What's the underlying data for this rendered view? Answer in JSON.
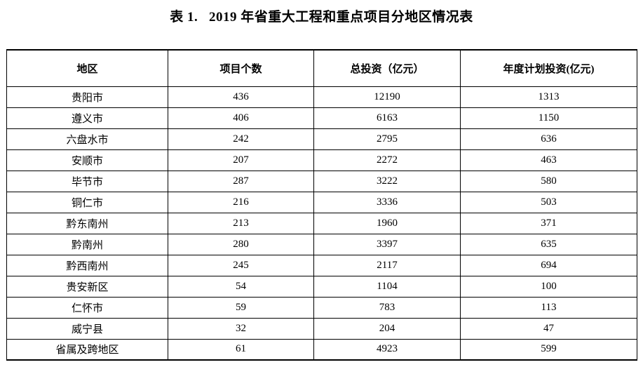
{
  "page": {
    "title": "表 1.   2019 年省重大工程和重点项目分地区情况表"
  },
  "table": {
    "headers": [
      "地区",
      "项目个数",
      "总投资（亿元）",
      "年度计划投资(亿元)"
    ],
    "rows": [
      {
        "region": "贵阳市",
        "projects": "436",
        "total": "12190",
        "annual": "1313"
      },
      {
        "region": "遵义市",
        "projects": "406",
        "total": "6163",
        "annual": "1150"
      },
      {
        "region": "六盘水市",
        "projects": "242",
        "total": "2795",
        "annual": "636"
      },
      {
        "region": "安顺市",
        "projects": "207",
        "total": "2272",
        "annual": "463"
      },
      {
        "region": "毕节市",
        "projects": "287",
        "total": "3222",
        "annual": "580"
      },
      {
        "region": "铜仁市",
        "projects": "216",
        "total": "3336",
        "annual": "503"
      },
      {
        "region": "黔东南州",
        "projects": "213",
        "total": "1960",
        "annual": "371"
      },
      {
        "region": "黔南州",
        "projects": "280",
        "total": "3397",
        "annual": "635"
      },
      {
        "region": "黔西南州",
        "projects": "245",
        "total": "2117",
        "annual": "694"
      },
      {
        "region": "贵安新区",
        "projects": "54",
        "total": "1104",
        "annual": "100"
      },
      {
        "region": "仁怀市",
        "projects": "59",
        "total": "783",
        "annual": "113"
      },
      {
        "region": "威宁县",
        "projects": "32",
        "total": "204",
        "annual": "47"
      },
      {
        "region": "省属及跨地区",
        "projects": "61",
        "total": "4923",
        "annual": "599"
      }
    ]
  }
}
